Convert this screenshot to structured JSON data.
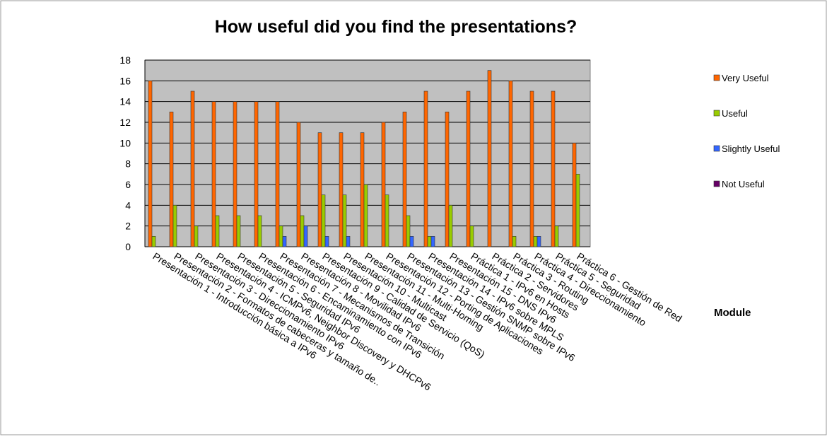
{
  "chart_data": {
    "type": "bar",
    "title": "How useful did you find the presentations?",
    "x_label": "Module",
    "categories": [
      "Presentación 1 - Introducción básica a IPv6",
      "Presentación 2 - Formatos de cabeceras y tamaño de..",
      "Presentación 3 - Direccionamiento IPv6",
      "Presentación 4 - ICMPv6, Neighbor Discovery y DHCPv6",
      "Presentación 5 - Seguridad IPv6",
      "Presentación 6 - Encaminamiento con IPv6",
      "Presentación 7 - Mecanismos de Transición",
      "Presentación 8 - Movilidad IPv6",
      "Presentación 9 - Calidad de Servicio (QoS)",
      "Presentación 10 - Multicast",
      "Presentación 11 - Multi-Homing",
      "Presentación 12 - Porting de Aplicaciones",
      "Presentación 13 - Gestión SNMP sobre IPv6",
      "Presentación 14 - IPv6 sobre MPLS",
      "Presentación 15 - DNS IPv6",
      "Práctica 1 - IPv6 en Hosts",
      "Práctica 2 - Servidores",
      "Práctica 3 - Routing",
      "Práctica 4 - Direccionamiento",
      "Práctica 5 - Seguridad",
      "Práctica 6 - Gestión de Red"
    ],
    "series": [
      {
        "name": "Very Useful",
        "color": "#ff6600",
        "values": [
          16,
          13,
          15,
          14,
          14,
          14,
          14,
          12,
          11,
          11,
          11,
          12,
          13,
          15,
          13,
          15,
          17,
          16,
          15,
          15,
          10
        ]
      },
      {
        "name": "Useful",
        "color": "#99cc00",
        "values": [
          1,
          4,
          2,
          3,
          3,
          3,
          2,
          3,
          5,
          5,
          6,
          5,
          3,
          1,
          4,
          2,
          0,
          1,
          1,
          2,
          7
        ]
      },
      {
        "name": "Slightly Useful",
        "color": "#3366ff",
        "values": [
          0,
          0,
          0,
          0,
          0,
          0,
          1,
          2,
          1,
          1,
          0,
          0,
          1,
          1,
          0,
          0,
          0,
          0,
          1,
          0,
          0
        ]
      },
      {
        "name": "Not Useful",
        "color": "#660066",
        "values": [
          0,
          0,
          0,
          0,
          0,
          0,
          0,
          0,
          0,
          0,
          0,
          0,
          0,
          0,
          0,
          0,
          0,
          0,
          0,
          0,
          0
        ]
      }
    ],
    "ylim": [
      0,
      18
    ],
    "yticks": [
      0,
      2,
      4,
      6,
      8,
      10,
      12,
      14,
      16,
      18
    ],
    "grid": true,
    "legend": "right"
  }
}
